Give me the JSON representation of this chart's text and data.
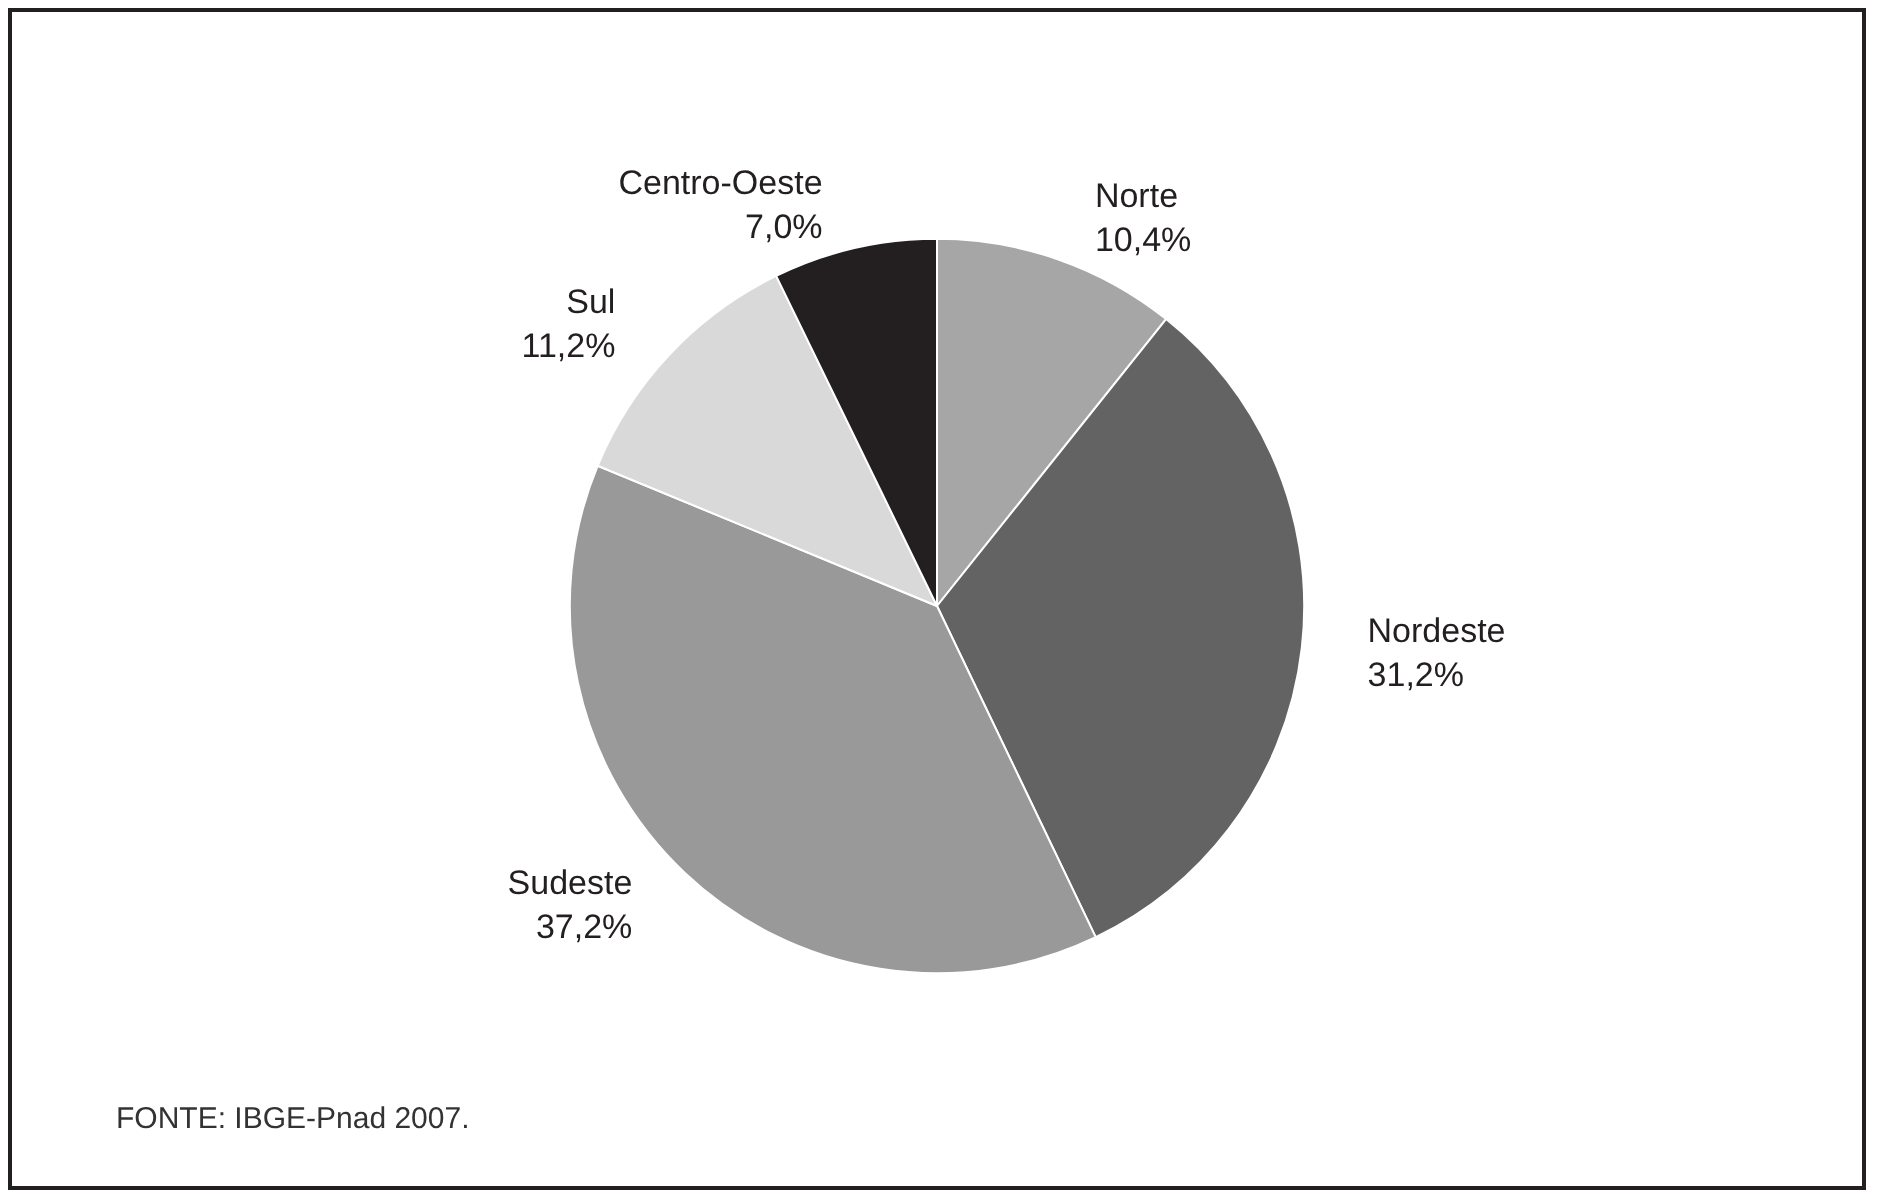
{
  "chart_data": {
    "type": "pie",
    "categories": [
      "Norte",
      "Nordeste",
      "Sudeste",
      "Sul",
      "Centro-Oeste"
    ],
    "values": [
      10.4,
      31.2,
      37.2,
      11.2,
      7.0
    ],
    "value_labels": [
      "10,4%",
      "31,2%",
      "37,2%",
      "11,2%",
      "7,0%"
    ],
    "colors": [
      "#a6a6a6",
      "#636363",
      "#999999",
      "#d9d9d9",
      "#231f20"
    ],
    "annotations": [
      "FONTE: IBGE-Pnad 2007."
    ]
  }
}
